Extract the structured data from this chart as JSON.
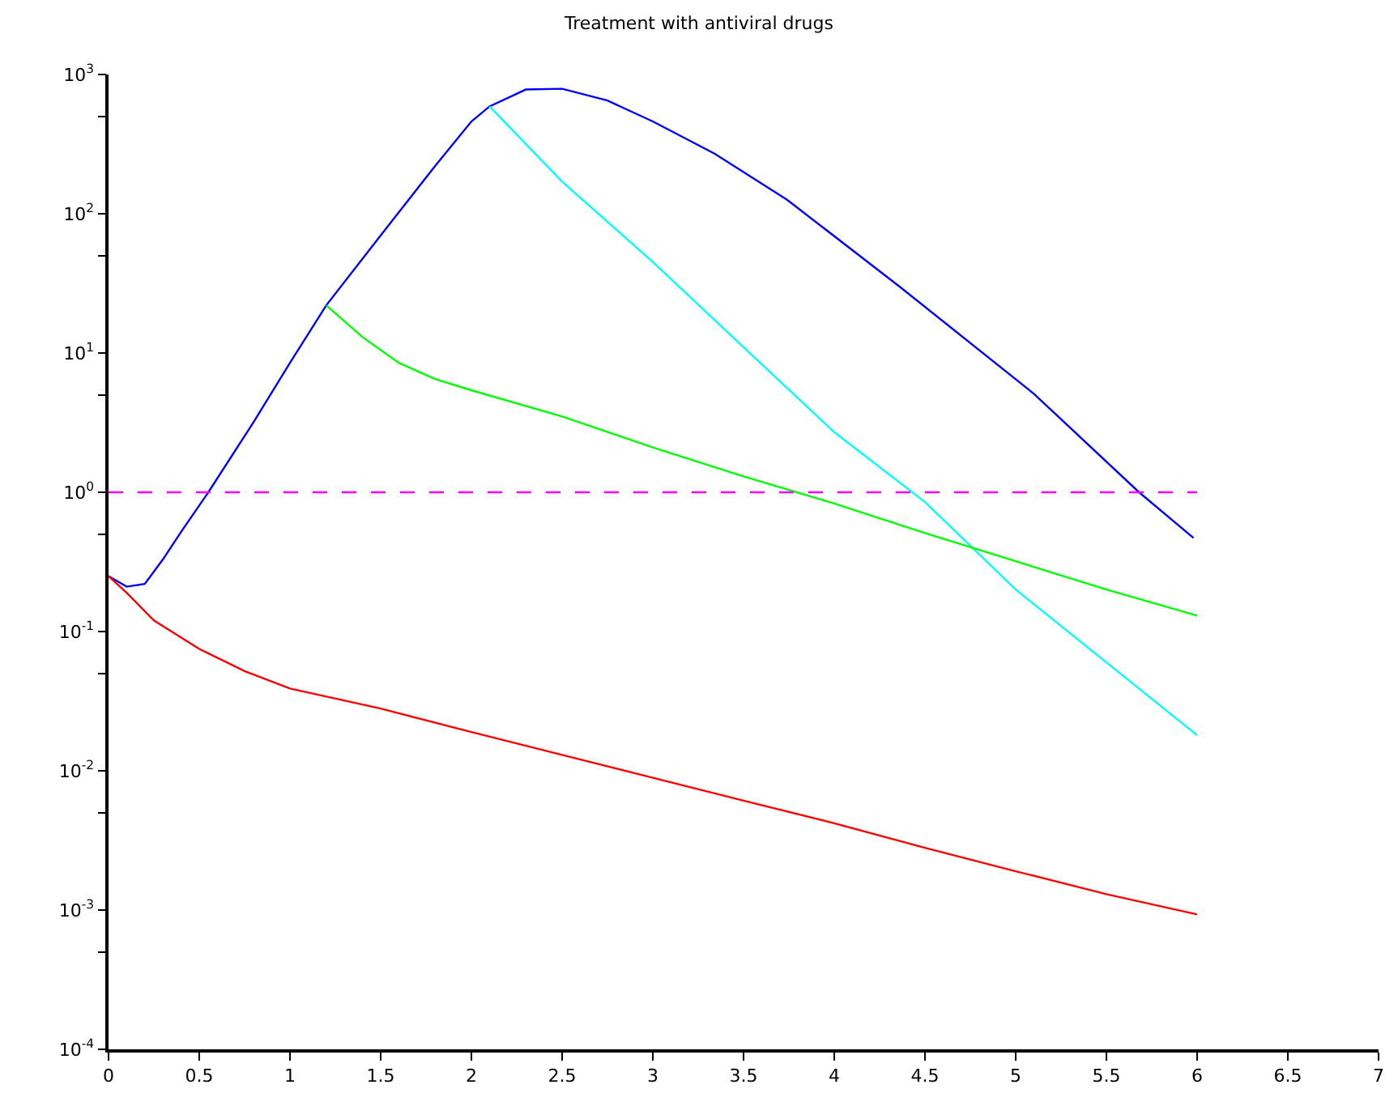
{
  "chart_data": {
    "type": "line",
    "title": "Treatment with antiviral drugs",
    "log": "y",
    "marker": "none",
    "xlim": [
      0,
      7
    ],
    "xticks": [
      0,
      0.5,
      1,
      1.5,
      2,
      2.5,
      3,
      3.5,
      4,
      4.5,
      5,
      5.5,
      6,
      6.5,
      7
    ],
    "ylim": [
      0.0001,
      1000
    ],
    "yticks": [
      {
        "value": 0.0001,
        "label": "10$^{-4}$"
      },
      {
        "value": 0.0005,
        "label": null
      },
      {
        "value": 0.001,
        "label": "10$^{-3}$"
      },
      {
        "value": 0.005,
        "label": null
      },
      {
        "value": 0.01,
        "label": "10$^{-2}$"
      },
      {
        "value": 0.05,
        "label": null
      },
      {
        "value": 0.1,
        "label": "10$^{-1}$"
      },
      {
        "value": 0.5,
        "label": null
      },
      {
        "value": 1,
        "label": "10$^{0}$"
      },
      {
        "value": 5,
        "label": null
      },
      {
        "value": 10,
        "label": "10$^{1}$"
      },
      {
        "value": 50,
        "label": null
      },
      {
        "value": 100,
        "label": "10$^{2}$"
      },
      {
        "value": 500,
        "label": null
      },
      {
        "value": 1000,
        "label": "10$^{3}$"
      }
    ],
    "series": [
      {
        "color": "#0000ff",
        "line_style": "solid",
        "x": [
          0,
          0.1,
          0.2,
          0.3,
          0.4,
          0.55,
          0.8,
          1.0,
          1.2,
          1.5,
          1.8,
          2.0,
          2.1,
          2.3,
          2.5,
          2.75,
          3.0,
          3.34,
          3.74,
          4.36,
          5.1,
          5.68,
          5.98
        ],
        "values": [
          0.25,
          0.21,
          0.22,
          0.33,
          0.52,
          1,
          3.2,
          8.5,
          22,
          70,
          220,
          460,
          590,
          780,
          790,
          650,
          460,
          270,
          126,
          30,
          5.1,
          1,
          0.47
        ]
      },
      {
        "color": "#00ffff",
        "line_style": "solid",
        "x": [
          2.1,
          2.5,
          3,
          3.5,
          4,
          4.5,
          5,
          5.5,
          6
        ],
        "values": [
          590,
          170,
          45,
          11,
          2.7,
          0.85,
          0.2,
          0.06,
          0.018
        ]
      },
      {
        "color": "#00ff00",
        "line_style": "solid",
        "x": [
          1.2,
          1.4,
          1.6,
          1.8,
          2,
          2.5,
          3,
          3.5,
          4,
          4.5,
          5,
          5.5,
          6
        ],
        "values": [
          22,
          13,
          8.5,
          6.5,
          5.4,
          3.5,
          2.1,
          1.3,
          0.83,
          0.51,
          0.32,
          0.2,
          0.13
        ]
      },
      {
        "color": "#ff0000",
        "line_style": "solid",
        "x": [
          0,
          0.1,
          0.25,
          0.5,
          0.75,
          1,
          1.5,
          2,
          2.5,
          3,
          3.5,
          4,
          4.5,
          5,
          5.5,
          6
        ],
        "values": [
          0.25,
          0.19,
          0.12,
          0.075,
          0.052,
          0.039,
          0.028,
          0.019,
          0.013,
          0.0089,
          0.0061,
          0.0042,
          0.0028,
          0.0019,
          0.0013,
          0.00093
        ]
      },
      {
        "color": "#ff00ff",
        "line_style": "dashed",
        "x": [
          0,
          6
        ],
        "values": [
          1,
          1
        ]
      }
    ]
  }
}
